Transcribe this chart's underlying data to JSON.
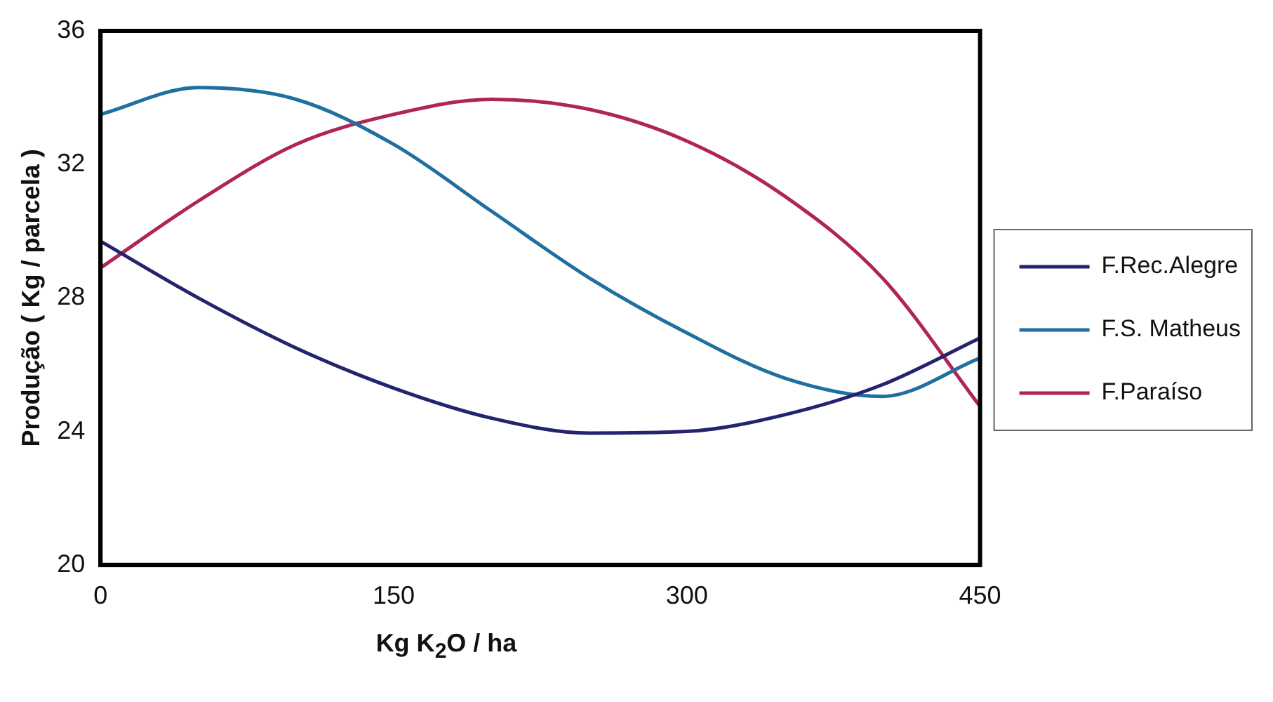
{
  "chart_data": {
    "type": "line",
    "xlabel": "Kg K$_{2}$O / ha",
    "ylabel": "Produção ( Kg / parcela )",
    "x": [
      0,
      50,
      100,
      150,
      200,
      250,
      300,
      350,
      400,
      450
    ],
    "series": [
      {
        "name": "F.Rec.Alegre",
        "color": "#24236e",
        "values": [
          29.7,
          28.0,
          26.5,
          25.3,
          24.4,
          23.95,
          24.0,
          24.5,
          25.4,
          26.8
        ]
      },
      {
        "name": "F.S. Matheus",
        "color": "#1f6f9f",
        "values": [
          33.5,
          34.3,
          33.95,
          32.6,
          30.6,
          28.6,
          26.95,
          25.6,
          25.05,
          26.2
        ]
      },
      {
        "name": "F.Paraíso",
        "color": "#b02458",
        "values": [
          28.9,
          30.9,
          32.6,
          33.5,
          33.95,
          33.65,
          32.7,
          31.05,
          28.6,
          24.75
        ]
      }
    ],
    "xlim": [
      0,
      450
    ],
    "xticks": [
      0,
      150,
      300,
      450
    ],
    "ylim": [
      20,
      36
    ],
    "yticks": [
      20,
      24,
      28,
      32,
      36
    ],
    "grid": false,
    "legend": "right",
    "marker": "none",
    "line_style": "solid"
  }
}
